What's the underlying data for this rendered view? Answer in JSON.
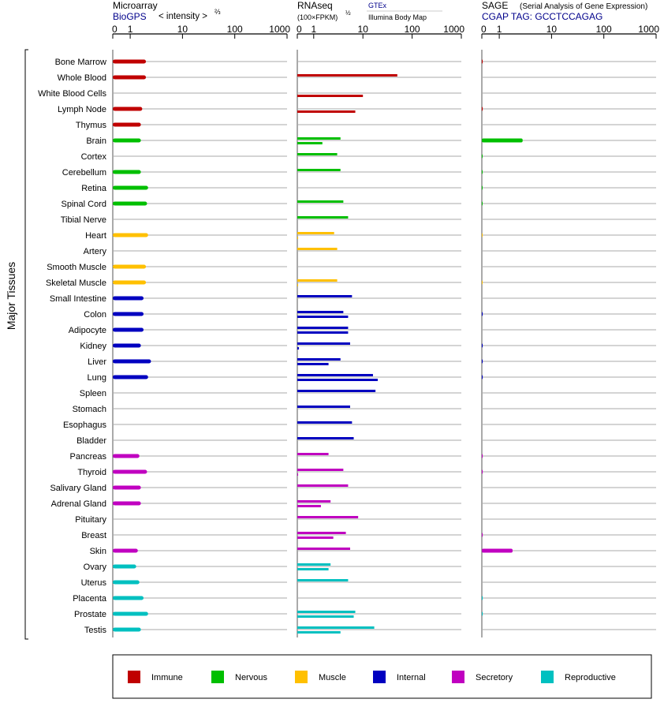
{
  "headers": {
    "microarray": {
      "title": "Microarray",
      "source": "BioGPS",
      "unit": "< intensity >",
      "unit_exp": "⅔"
    },
    "rnaseq": {
      "title": "RNAseq",
      "unit": "(100×FPKM)",
      "unit_exp": "½",
      "source1": "GTEx",
      "source2": "Illumina Body Map"
    },
    "sage": {
      "title": "SAGE",
      "subtitle": "(Serial Analysis of Gene Expression)",
      "source": "CGAP  TAG: GCCTCCAGAG"
    }
  },
  "axis_ticks": [
    "0",
    "1",
    "10",
    "100",
    "1000"
  ],
  "group_label": "Major Tissues",
  "colors": {
    "Immune": "#c00000",
    "Nervous": "#00bf00",
    "Muscle": "#ffc000",
    "Internal": "#0000c0",
    "Secretory": "#c000c0",
    "Reproductive": "#00c0c0"
  },
  "legend": [
    "Immune",
    "Nervous",
    "Muscle",
    "Internal",
    "Secretory",
    "Reproductive"
  ],
  "chart_data": {
    "type": "bar",
    "title": "",
    "x_scale": "log-like (ticks 0, 1, 10, 100, 1000)",
    "xlim": [
      0,
      1000
    ],
    "panels": [
      "Microarray",
      "RNAseq (GTEx)",
      "RNAseq (Illumina Body Map)",
      "SAGE"
    ],
    "tissues": [
      {
        "name": "Bone Marrow",
        "group": "Immune",
        "microarray": 2,
        "gtex": null,
        "ibm": null,
        "sage": 0.05
      },
      {
        "name": "Whole Blood",
        "group": "Immune",
        "microarray": 2,
        "gtex": 50,
        "ibm": null,
        "sage": null
      },
      {
        "name": "White Blood Cells",
        "group": "Immune",
        "microarray": null,
        "gtex": null,
        "ibm": 10,
        "sage": null
      },
      {
        "name": "Lymph Node",
        "group": "Immune",
        "microarray": 1.7,
        "gtex": null,
        "ibm": 7,
        "sage": 0.05
      },
      {
        "name": "Thymus",
        "group": "Immune",
        "microarray": 1.6,
        "gtex": null,
        "ibm": null,
        "sage": null
      },
      {
        "name": "Brain",
        "group": "Nervous",
        "microarray": 1.6,
        "gtex": 3.5,
        "ibm": 1.5,
        "sage": 2.8
      },
      {
        "name": "Cortex",
        "group": "Nervous",
        "microarray": null,
        "gtex": 3,
        "ibm": null,
        "sage": 0.03
      },
      {
        "name": "Cerebellum",
        "group": "Nervous",
        "microarray": 1.6,
        "gtex": 3.5,
        "ibm": null,
        "sage": 0.03
      },
      {
        "name": "Retina",
        "group": "Nervous",
        "microarray": 2.2,
        "gtex": null,
        "ibm": null,
        "sage": 0.03
      },
      {
        "name": "Spinal Cord",
        "group": "Nervous",
        "microarray": 2.1,
        "gtex": 4,
        "ibm": null,
        "sage": 0.03
      },
      {
        "name": "Tibial Nerve",
        "group": "Nervous",
        "microarray": null,
        "gtex": 5,
        "ibm": null,
        "sage": null
      },
      {
        "name": "Heart",
        "group": "Muscle",
        "microarray": 2.2,
        "gtex": 2.6,
        "ibm": 0.05,
        "sage": 0.02
      },
      {
        "name": "Artery",
        "group": "Muscle",
        "microarray": null,
        "gtex": 3,
        "ibm": null,
        "sage": null
      },
      {
        "name": "Smooth Muscle",
        "group": "Muscle",
        "microarray": 2,
        "gtex": null,
        "ibm": null,
        "sage": null
      },
      {
        "name": "Skeletal Muscle",
        "group": "Muscle",
        "microarray": 2,
        "gtex": 3,
        "ibm": 0.05,
        "sage": 0.02
      },
      {
        "name": "Small Intestine",
        "group": "Internal",
        "microarray": 1.8,
        "gtex": 6,
        "ibm": null,
        "sage": null
      },
      {
        "name": "Colon",
        "group": "Internal",
        "microarray": 1.8,
        "gtex": 4,
        "ibm": 5,
        "sage": 0.05
      },
      {
        "name": "Adipocyte",
        "group": "Internal",
        "microarray": 1.8,
        "gtex": 5,
        "ibm": 5,
        "sage": null
      },
      {
        "name": "Kidney",
        "group": "Internal",
        "microarray": 1.6,
        "gtex": 5.5,
        "ibm": 0.1,
        "sage": 0.05
      },
      {
        "name": "Liver",
        "group": "Internal",
        "microarray": 2.5,
        "gtex": 3.5,
        "ibm": 2,
        "sage": 0.05
      },
      {
        "name": "Lung",
        "group": "Internal",
        "microarray": 2.2,
        "gtex": 16,
        "ibm": 20,
        "sage": 0.05
      },
      {
        "name": "Spleen",
        "group": "Internal",
        "microarray": null,
        "gtex": 18,
        "ibm": null,
        "sage": null
      },
      {
        "name": "Stomach",
        "group": "Internal",
        "microarray": null,
        "gtex": 5.5,
        "ibm": null,
        "sage": null
      },
      {
        "name": "Esophagus",
        "group": "Internal",
        "microarray": null,
        "gtex": 6,
        "ibm": null,
        "sage": null
      },
      {
        "name": "Bladder",
        "group": "Internal",
        "microarray": null,
        "gtex": 6.5,
        "ibm": null,
        "sage": null
      },
      {
        "name": "Pancreas",
        "group": "Secretory",
        "microarray": 1.5,
        "gtex": 2,
        "ibm": null,
        "sage": 0.05
      },
      {
        "name": "Thyroid",
        "group": "Secretory",
        "microarray": 2.1,
        "gtex": 4,
        "ibm": 0.05,
        "sage": 0.05
      },
      {
        "name": "Salivary Gland",
        "group": "Secretory",
        "microarray": 1.6,
        "gtex": 5,
        "ibm": null,
        "sage": null
      },
      {
        "name": "Adrenal Gland",
        "group": "Secretory",
        "microarray": 1.6,
        "gtex": 2.2,
        "ibm": 1.4,
        "sage": null
      },
      {
        "name": "Pituitary",
        "group": "Secretory",
        "microarray": null,
        "gtex": 8,
        "ibm": null,
        "sage": null
      },
      {
        "name": "Breast",
        "group": "Secretory",
        "microarray": null,
        "gtex": 4.5,
        "ibm": 2.5,
        "sage": 0.05
      },
      {
        "name": "Skin",
        "group": "Secretory",
        "microarray": 1.4,
        "gtex": 5.5,
        "ibm": null,
        "sage": 1.8
      },
      {
        "name": "Ovary",
        "group": "Reproductive",
        "microarray": 1.3,
        "gtex": 2.2,
        "ibm": 2,
        "sage": null
      },
      {
        "name": "Uterus",
        "group": "Reproductive",
        "microarray": 1.5,
        "gtex": 5,
        "ibm": null,
        "sage": null
      },
      {
        "name": "Placenta",
        "group": "Reproductive",
        "microarray": 1.8,
        "gtex": null,
        "ibm": null,
        "sage": 0.05
      },
      {
        "name": "Prostate",
        "group": "Reproductive",
        "microarray": 2.2,
        "gtex": 7,
        "ibm": 6.5,
        "sage": 0.05
      },
      {
        "name": "Testis",
        "group": "Reproductive",
        "microarray": 1.6,
        "gtex": 17,
        "ibm": 3.5,
        "sage": null
      }
    ]
  }
}
